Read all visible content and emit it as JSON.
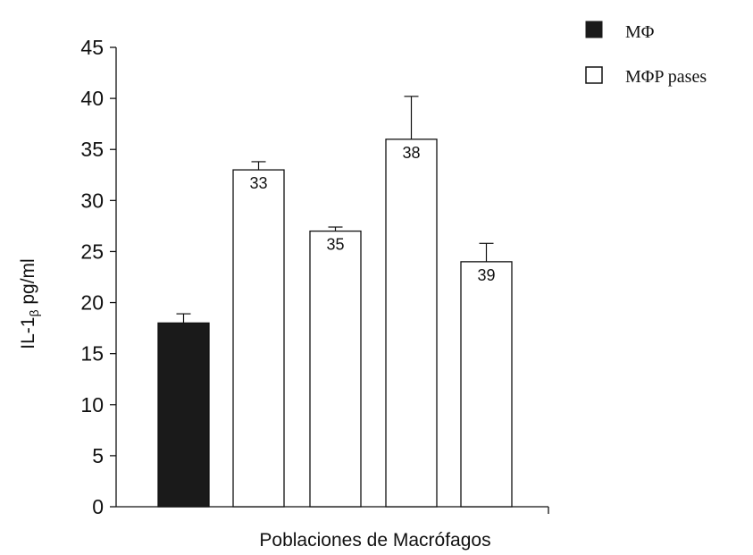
{
  "chart_data": {
    "type": "bar",
    "xlabel": "Poblaciones de Macrófagos",
    "ylabel_main": "IL-1",
    "ylabel_sub": "β",
    "ylabel_rest": " pg/ml",
    "ylim": [
      0,
      45
    ],
    "yticks": [
      0,
      5,
      10,
      15,
      20,
      25,
      30,
      35,
      40,
      45
    ],
    "legend_position": "top-right",
    "series": [
      {
        "name": "MΦ",
        "style": "filled",
        "color": "#1a1a1a"
      },
      {
        "name": "MΦP pases",
        "style": "hollow",
        "color": "#ffffff"
      }
    ],
    "bars": [
      {
        "series": 0,
        "value": 18,
        "error": 0.9,
        "label": ""
      },
      {
        "series": 1,
        "value": 33,
        "error": 0.8,
        "label": "33"
      },
      {
        "series": 1,
        "value": 27,
        "error": 0.4,
        "label": "35"
      },
      {
        "series": 1,
        "value": 36,
        "error": 4.2,
        "label": "38"
      },
      {
        "series": 1,
        "value": 24,
        "error": 1.8,
        "label": "39"
      }
    ],
    "grid": false
  }
}
